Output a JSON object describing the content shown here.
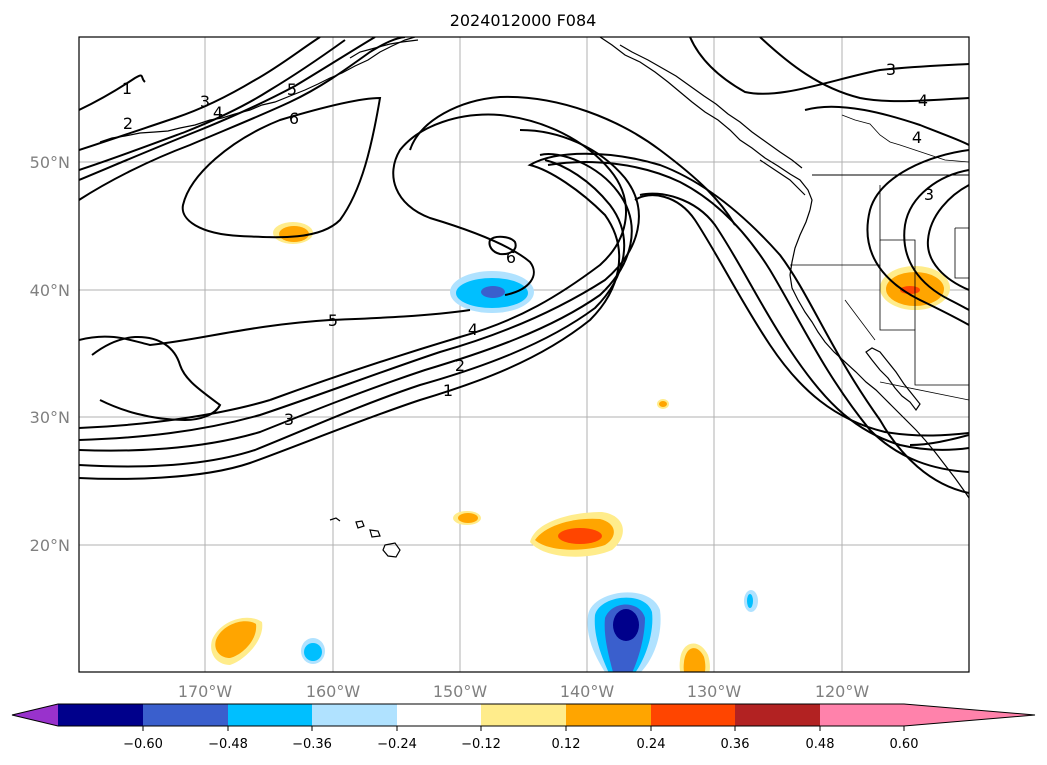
{
  "title": "2024012000 F084",
  "longitude_labels": [
    "170°W",
    "160°W",
    "150°W",
    "140°W",
    "130°W",
    "120°W"
  ],
  "latitude_labels": [
    "50°N",
    "40°N",
    "30°N",
    "20°N"
  ],
  "contour_labels": [
    {
      "id": "c1a",
      "text": "1"
    },
    {
      "id": "c2a",
      "text": "2"
    },
    {
      "id": "c3a",
      "text": "3"
    },
    {
      "id": "c4a",
      "text": "4"
    },
    {
      "id": "c5a",
      "text": "5"
    },
    {
      "id": "c6a",
      "text": "6"
    },
    {
      "id": "c6b",
      "text": "6"
    },
    {
      "id": "c5b",
      "text": "5"
    },
    {
      "id": "c4b",
      "text": "4"
    },
    {
      "id": "c2b",
      "text": "2"
    },
    {
      "id": "c1b",
      "text": "1"
    },
    {
      "id": "c3b",
      "text": "3"
    },
    {
      "id": "c3c",
      "text": "3"
    },
    {
      "id": "c4c",
      "text": "4"
    },
    {
      "id": "c4d",
      "text": "4"
    },
    {
      "id": "c3d",
      "text": "3"
    }
  ],
  "colorbar": {
    "tick_labels": [
      "−0.60",
      "−0.48",
      "−0.36",
      "−0.24",
      "−0.12",
      "0.12",
      "0.24",
      "0.36",
      "0.48",
      "0.60"
    ],
    "colors": [
      "#9932cc",
      "#00008b",
      "#3a5fcd",
      "#00bfff",
      "#b0e2ff",
      "#ffffff",
      "#ffec8b",
      "#ffa500",
      "#ff4500",
      "#b22222",
      "#ff82ab"
    ]
  }
}
